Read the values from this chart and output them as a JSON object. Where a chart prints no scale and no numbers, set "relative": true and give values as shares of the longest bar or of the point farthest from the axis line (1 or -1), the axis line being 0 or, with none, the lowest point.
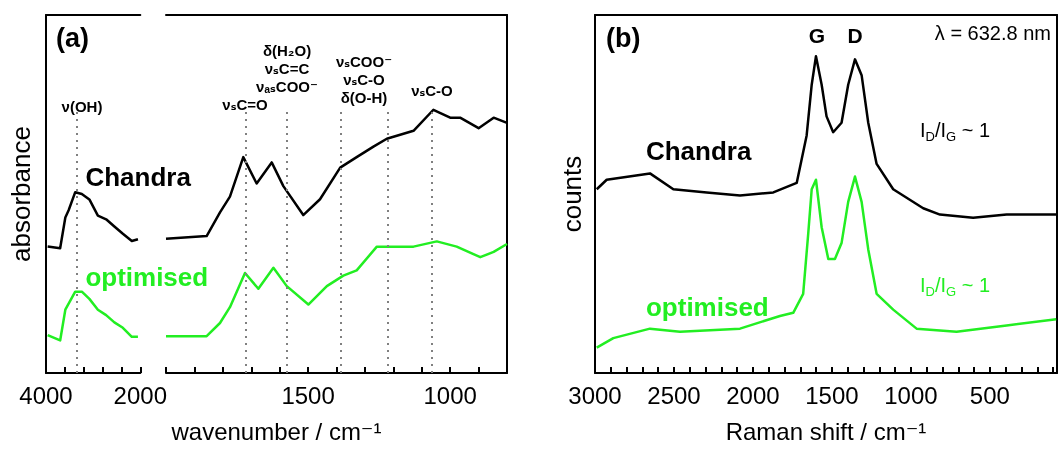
{
  "chart_data": [
    {
      "type": "line",
      "title": "(a)",
      "ylabel": "absorbance",
      "relative": true,
      "xlim": [
        4000,
        2000
      ],
      "xticks": [
        4000,
        {
          "value": 3600,
          "label": null
        },
        {
          "value": 3200,
          "label": null
        },
        {
          "value": 2800,
          "label": null
        },
        {
          "value": 2400,
          "label": null
        },
        2000
      ],
      "series": [
        {
          "name": "Chandra",
          "color": "#000000",
          "x": [
            3965,
            3700,
            3590,
            3520,
            3380,
            3240,
            3080,
            2900,
            2725,
            2550,
            2370,
            2180,
            2050
          ],
          "values": [
            0.7,
            0.69,
            0.86,
            0.9,
            1.0,
            0.99,
            0.96,
            0.87,
            0.85,
            0.81,
            0.77,
            0.73,
            0.74
          ]
        },
        {
          "name": "optimised",
          "color": "#22ee22",
          "x": [
            3965,
            3700,
            3590,
            3380,
            3240,
            3080,
            2900,
            2725,
            2550,
            2370,
            2180,
            2050
          ],
          "values": [
            0.21,
            0.18,
            0.35,
            0.45,
            0.45,
            0.41,
            0.35,
            0.32,
            0.28,
            0.25,
            0.2,
            0.2
          ]
        }
      ],
      "ref_lines": [
        {
          "axis": "x",
          "value": 3350,
          "color": "#808080",
          "line_style": "dotted"
        }
      ],
      "annotations": [
        "ν(OH)"
      ]
    },
    {
      "type": "line",
      "xlabel": "wavenumber / cm⁻¹",
      "relative": true,
      "xlim": [
        2000,
        800
      ],
      "xticks": [
        {
          "value": 2000,
          "label": null
        },
        {
          "value": 1900,
          "label": null
        },
        {
          "value": 1800,
          "label": null
        },
        {
          "value": 1700,
          "label": null
        },
        {
          "value": 1600,
          "label": null
        },
        1500,
        {
          "value": 1400,
          "label": null
        },
        {
          "value": 1300,
          "label": null
        },
        {
          "value": 1200,
          "label": null
        },
        {
          "value": 1100,
          "label": null
        },
        1000,
        {
          "value": 900,
          "label": null
        }
      ],
      "series": [
        {
          "color": "#000000",
          "x": [
            2000,
            1857,
            1810,
            1775,
            1728,
            1681,
            1628,
            1587,
            1517,
            1458,
            1387,
            1329,
            1270,
            1223,
            1129,
            1059,
            1000,
            965,
            900,
            847,
            800
          ],
          "values": [
            0.51,
            0.52,
            0.61,
            0.67,
            0.82,
            0.72,
            0.8,
            0.71,
            0.6,
            0.66,
            0.78,
            0.82,
            0.86,
            0.89,
            0.92,
            1.0,
            0.97,
            0.97,
            0.93,
            0.97,
            0.95
          ]
        },
        {
          "color": "#22ee22",
          "x": [
            2000,
            1857,
            1810,
            1775,
            1722,
            1675,
            1622,
            1575,
            1499,
            1434,
            1376,
            1329,
            1258,
            1200,
            1129,
            1047,
            977,
            894,
            847,
            800
          ],
          "values": [
            0.14,
            0.14,
            0.19,
            0.25,
            0.38,
            0.32,
            0.4,
            0.33,
            0.26,
            0.33,
            0.37,
            0.39,
            0.48,
            0.48,
            0.48,
            0.5,
            0.48,
            0.44,
            0.46,
            0.49
          ]
        }
      ],
      "ref_lines": [
        {
          "axis": "x",
          "value": 1720,
          "color": "#808080",
          "line_style": "dotted"
        },
        {
          "axis": "x",
          "value": 1575,
          "color": "#808080",
          "line_style": "dotted"
        },
        {
          "axis": "x",
          "value": 1385,
          "color": "#808080",
          "line_style": "dotted"
        },
        {
          "axis": "x",
          "value": 1220,
          "color": "#808080",
          "line_style": "dotted"
        },
        {
          "axis": "x",
          "value": 1065,
          "color": "#808080",
          "line_style": "dotted"
        }
      ],
      "annotations": [
        "νₛC=O",
        "δ(H₂O)\nνₛC=C\nνₐₛCOO⁻",
        "νₛCOO⁻\nνₛC-O\nδ(O-H)",
        "νₛC-O"
      ]
    },
    {
      "type": "line",
      "title": "(b)",
      "xlabel": "Raman shift / cm⁻¹",
      "ylabel": "counts",
      "relative": true,
      "xlim": [
        3000,
        75
      ],
      "xticks": [
        3000,
        {
          "value": 2900,
          "label": null
        },
        {
          "value": 2800,
          "label": null
        },
        {
          "value": 2700,
          "label": null
        },
        {
          "value": 2600,
          "label": null
        },
        2500,
        {
          "value": 2400,
          "label": null
        },
        {
          "value": 2300,
          "label": null
        },
        {
          "value": 2200,
          "label": null
        },
        {
          "value": 2100,
          "label": null
        },
        2000,
        {
          "value": 1900,
          "label": null
        },
        {
          "value": 1800,
          "label": null
        },
        {
          "value": 1700,
          "label": null
        },
        {
          "value": 1600,
          "label": null
        },
        1500,
        {
          "value": 1400,
          "label": null
        },
        {
          "value": 1300,
          "label": null
        },
        {
          "value": 1200,
          "label": null
        },
        {
          "value": 1100,
          "label": null
        },
        1000,
        {
          "value": 900,
          "label": null
        },
        {
          "value": 800,
          "label": null
        },
        {
          "value": 700,
          "label": null
        },
        {
          "value": 600,
          "label": null
        },
        500,
        {
          "value": 400,
          "label": null
        },
        {
          "value": 300,
          "label": null
        },
        {
          "value": 200,
          "label": null
        },
        {
          "value": 100,
          "label": null
        }
      ],
      "series": [
        {
          "name": "Chandra",
          "color": "#000000",
          "x": [
            2989,
            2926,
            2652,
            2504,
            2293,
            2082,
            1871,
            1723,
            1660,
            1628,
            1601,
            1565,
            1534,
            1492,
            1439,
            1397,
            1354,
            1312,
            1270,
            1217,
            1112,
            922,
            816,
            606,
            394,
            80
          ],
          "values": [
            0.58,
            0.61,
            0.63,
            0.58,
            0.57,
            0.56,
            0.57,
            0.6,
            0.75,
            0.91,
            1.0,
            0.91,
            0.81,
            0.76,
            0.79,
            0.91,
            0.99,
            0.94,
            0.79,
            0.66,
            0.58,
            0.52,
            0.5,
            0.49,
            0.5,
            0.5
          ]
        },
        {
          "name": "optimised",
          "color": "#22ee22",
          "x": [
            2989,
            2884,
            2652,
            2462,
            2082,
            1829,
            1745,
            1682,
            1650,
            1628,
            1601,
            1565,
            1523,
            1481,
            1439,
            1397,
            1354,
            1312,
            1270,
            1217,
            1112,
            964,
            711,
            394,
            80
          ],
          "values": [
            0.08,
            0.11,
            0.14,
            0.13,
            0.14,
            0.18,
            0.19,
            0.25,
            0.44,
            0.58,
            0.61,
            0.46,
            0.36,
            0.36,
            0.41,
            0.54,
            0.62,
            0.54,
            0.39,
            0.25,
            0.2,
            0.14,
            0.13,
            0.15,
            0.17
          ]
        }
      ],
      "annotations": [
        "λ = 632.8 nm",
        "G",
        "D",
        "I$_{D}$/I$_{G}$ ~ 1",
        "I$_{D}$/I$_{G}$ ~ 1"
      ]
    }
  ]
}
